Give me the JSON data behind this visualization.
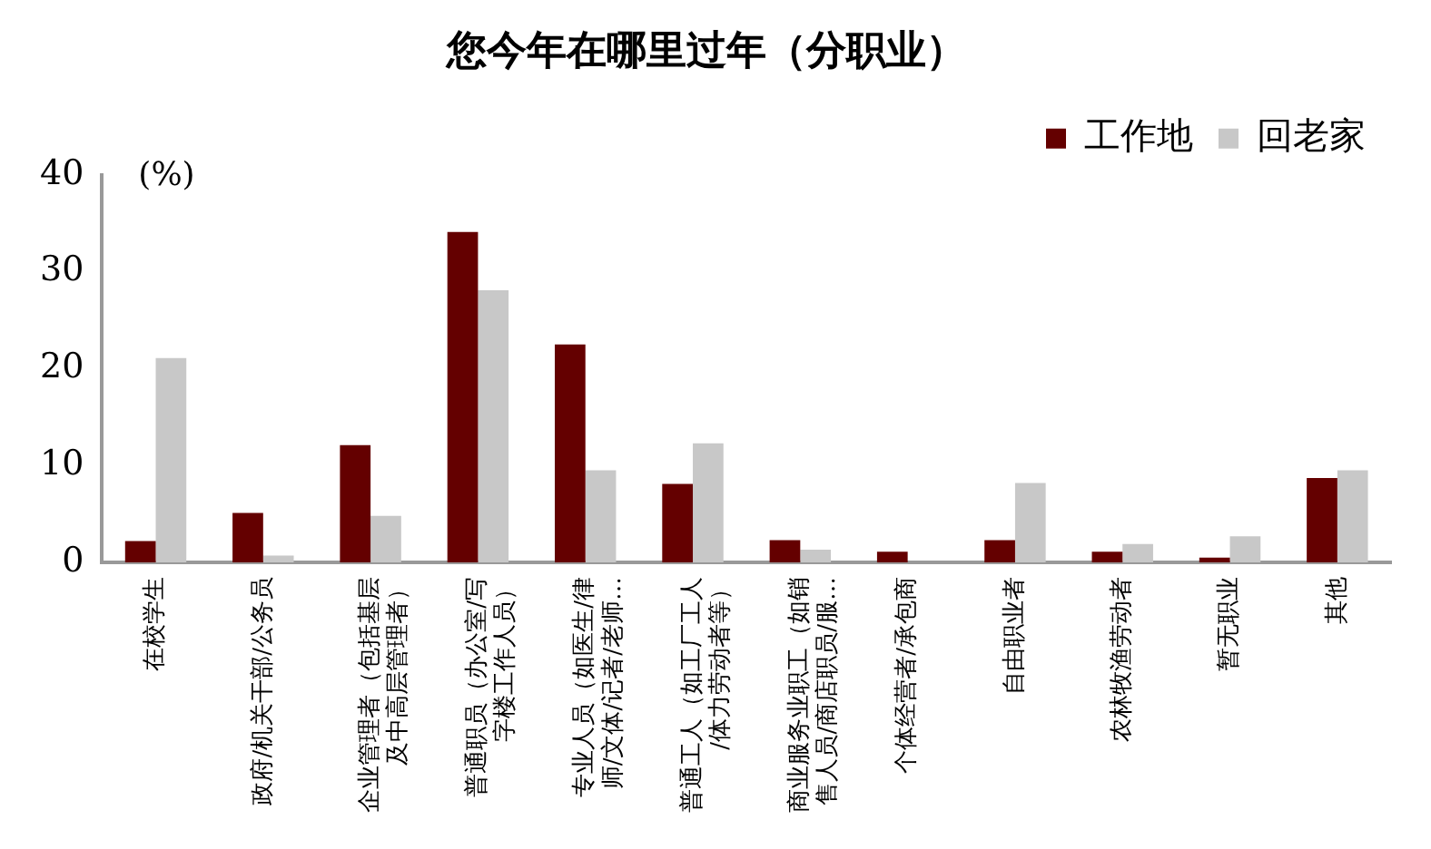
{
  "chart_data": {
    "type": "bar",
    "title": "您今年在哪里过年（分职业）",
    "ylabel": "(%)",
    "categories": [
      "在校学生",
      "政府/机关干部/公务员",
      "企业管理者（包括基层及中高层管理者）",
      "普通职员（办公室/写字楼工作人员）",
      "专业人员（如医生/律师/文体/记者/老师…",
      "普通工人（如工厂工人/体力劳动者等）",
      "商业服务业职工（如销售人员/商店职员/服…",
      "个体经营者/承包商",
      "自由职业者",
      "农林牧渔劳动者",
      "暂无职业",
      "其他"
    ],
    "series": [
      {
        "name": "工作地",
        "color": "#640000",
        "values": [
          2.2,
          5.1,
          12.1,
          34.1,
          22.5,
          8.1,
          2.3,
          1.1,
          2.3,
          1.1,
          0.5,
          8.7
        ]
      },
      {
        "name": "回老家",
        "color": "#c8c8c8",
        "values": [
          21.1,
          0.7,
          4.8,
          28.1,
          9.5,
          12.3,
          1.3,
          0,
          8.2,
          1.9,
          2.7,
          9.5
        ]
      }
    ],
    "ylim": [
      0,
      40
    ],
    "yticks": [
      0,
      10,
      20,
      30,
      40
    ],
    "grid": false,
    "legend": "top right"
  }
}
